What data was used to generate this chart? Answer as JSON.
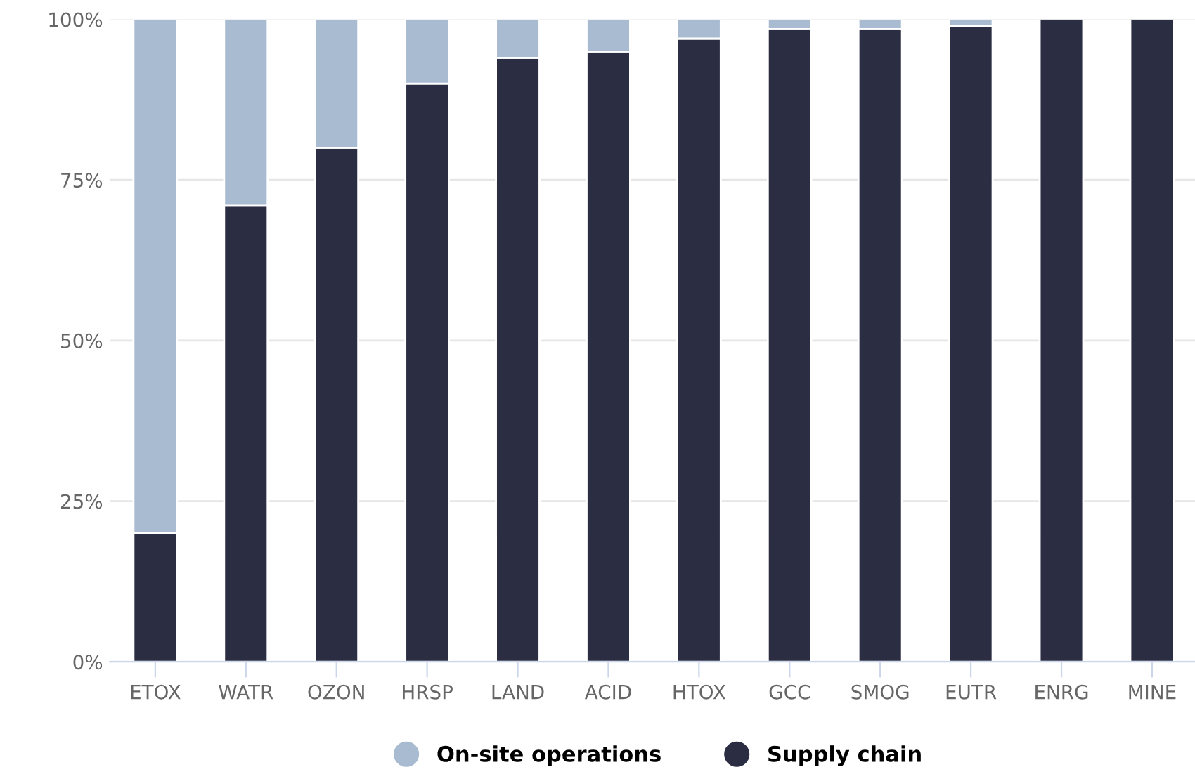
{
  "chart_data": {
    "type": "bar",
    "stacked": true,
    "categories": [
      "ETOX",
      "WATR",
      "OZON",
      "HRSP",
      "LAND",
      "ACID",
      "HTOX",
      "GCC",
      "SMOG",
      "EUTR",
      "ENRG",
      "MINE"
    ],
    "series": [
      {
        "name": "Supply chain",
        "color": "#2b2d42",
        "values": [
          20,
          71,
          80,
          90,
          94,
          95,
          97,
          98.5,
          98.5,
          99,
          100,
          100
        ]
      },
      {
        "name": "On-site operations",
        "color": "#a8bbd0",
        "values": [
          80,
          29,
          20,
          10,
          6,
          5,
          3,
          1.5,
          1.5,
          1,
          null,
          null
        ]
      }
    ],
    "ylim": [
      0,
      100
    ],
    "yticks": [
      {
        "value": 0,
        "label": "0%"
      },
      {
        "value": 25,
        "label": "25%"
      },
      {
        "value": 50,
        "label": "50%"
      },
      {
        "value": 75,
        "label": "75%"
      },
      {
        "value": 100,
        "label": "100%"
      }
    ],
    "grid": "y",
    "legend": "bottom"
  }
}
